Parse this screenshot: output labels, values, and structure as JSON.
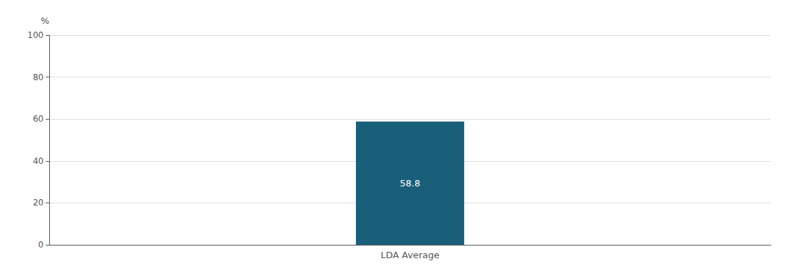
{
  "chart_data": {
    "type": "bar",
    "ylabel": "%",
    "categories": [
      "LDA Average"
    ],
    "values": [
      58.8
    ],
    "color": "#1a5f7a",
    "ylim": [
      0,
      100
    ],
    "yticks": [
      0,
      20,
      40,
      60,
      80,
      100
    ],
    "grid": true,
    "data_labels": true
  }
}
